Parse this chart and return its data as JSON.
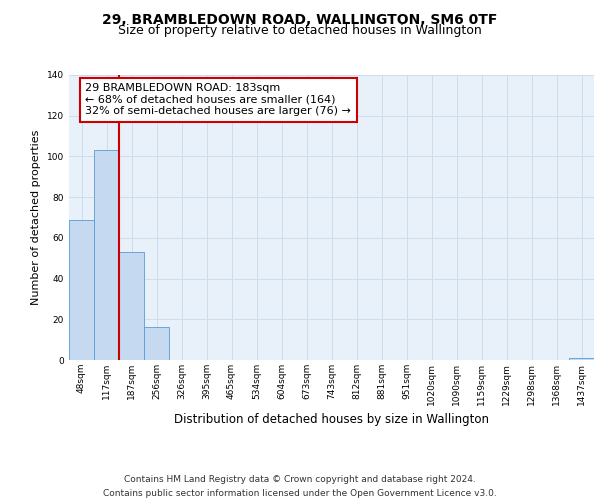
{
  "title": "29, BRAMBLEDOWN ROAD, WALLINGTON, SM6 0TF",
  "subtitle": "Size of property relative to detached houses in Wallington",
  "xlabel": "Distribution of detached houses by size in Wallington",
  "ylabel": "Number of detached properties",
  "bin_labels": [
    "48sqm",
    "117sqm",
    "187sqm",
    "256sqm",
    "326sqm",
    "395sqm",
    "465sqm",
    "534sqm",
    "604sqm",
    "673sqm",
    "743sqm",
    "812sqm",
    "881sqm",
    "951sqm",
    "1020sqm",
    "1090sqm",
    "1159sqm",
    "1229sqm",
    "1298sqm",
    "1368sqm",
    "1437sqm"
  ],
  "bar_heights": [
    69,
    103,
    53,
    16,
    0,
    0,
    0,
    0,
    0,
    0,
    0,
    0,
    0,
    0,
    0,
    0,
    0,
    0,
    0,
    0,
    1
  ],
  "bar_color": "#c5d9f1",
  "bar_edge_color": "#5b9bd5",
  "vline_color": "#cc0000",
  "annotation_text": "29 BRAMBLEDOWN ROAD: 183sqm\n← 68% of detached houses are smaller (164)\n32% of semi-detached houses are larger (76) →",
  "annotation_box_edge_color": "#cc0000",
  "annotation_box_face_color": "#ffffff",
  "ylim": [
    0,
    140
  ],
  "yticks": [
    0,
    20,
    40,
    60,
    80,
    100,
    120,
    140
  ],
  "grid_color": "#ccddf0",
  "background_color": "#e8f0fa",
  "footnote": "Contains HM Land Registry data © Crown copyright and database right 2024.\nContains public sector information licensed under the Open Government Licence v3.0.",
  "title_fontsize": 10,
  "subtitle_fontsize": 9,
  "xlabel_fontsize": 8.5,
  "ylabel_fontsize": 8,
  "annotation_fontsize": 8,
  "footnote_fontsize": 6.5,
  "tick_fontsize": 6.5
}
